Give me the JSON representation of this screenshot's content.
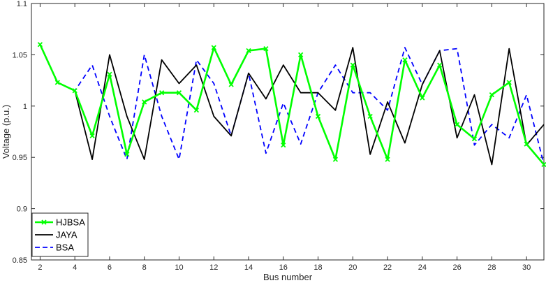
{
  "chart_data": {
    "type": "line",
    "xlabel": "Bus number",
    "ylabel": "Voltage (p.u.)",
    "xlim": [
      1.5,
      31
    ],
    "ylim": [
      0.85,
      1.1
    ],
    "x_ticks": [
      2,
      4,
      6,
      8,
      10,
      12,
      14,
      16,
      18,
      20,
      22,
      24,
      26,
      28,
      30
    ],
    "y_ticks": [
      0.85,
      0.9,
      0.95,
      1,
      1.05,
      1.1
    ],
    "grid": false,
    "legend_position": "bottom-left",
    "x": [
      2,
      3,
      4,
      5,
      6,
      7,
      8,
      9,
      10,
      11,
      12,
      13,
      14,
      15,
      16,
      17,
      18,
      19,
      20,
      21,
      22,
      23,
      24,
      25,
      26,
      27,
      28,
      29,
      30,
      31
    ],
    "series": [
      {
        "name": "HJBSA",
        "color": "#00ff00",
        "style": "solid-x",
        "values": [
          1.06,
          1.023,
          1.015,
          0.971,
          1.031,
          0.953,
          1.004,
          1.013,
          1.013,
          0.996,
          1.057,
          1.021,
          1.054,
          1.056,
          0.962,
          1.05,
          0.99,
          0.948,
          1.04,
          0.99,
          0.948,
          1.045,
          1.008,
          1.04,
          0.982,
          0.968,
          1.011,
          1.023,
          0.963,
          0.943
        ]
      },
      {
        "name": "JAYA",
        "color": "#000000",
        "style": "solid",
        "values": [
          1.06,
          1.023,
          1.015,
          0.948,
          1.05,
          0.99,
          0.948,
          1.045,
          1.022,
          1.04,
          0.99,
          0.971,
          1.032,
          1.007,
          1.04,
          1.013,
          1.013,
          0.996,
          1.057,
          0.953,
          1.004,
          0.964,
          1.021,
          1.054,
          0.969,
          1.011,
          0.943,
          1.056,
          0.962,
          0.982
        ]
      },
      {
        "name": "BSA",
        "color": "#0000ff",
        "style": "dashed",
        "values": [
          1.06,
          1.023,
          1.015,
          1.04,
          0.99,
          0.948,
          1.05,
          0.99,
          0.948,
          1.045,
          1.022,
          0.971,
          1.032,
          0.954,
          1.003,
          0.963,
          1.013,
          1.04,
          1.013,
          1.013,
          0.996,
          1.057,
          1.021,
          1.054,
          1.056,
          0.962,
          0.982,
          0.969,
          1.011,
          0.943
        ]
      }
    ]
  }
}
